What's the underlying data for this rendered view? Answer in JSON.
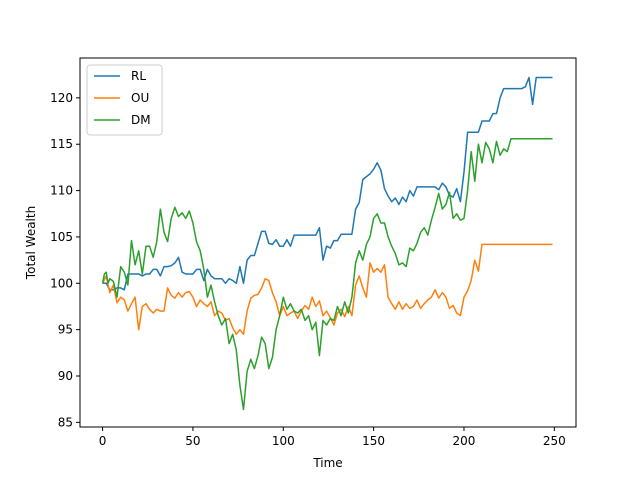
{
  "chart_data": {
    "type": "line",
    "title": "",
    "xlabel": "Time",
    "ylabel": "Total Wealth",
    "xlim": [
      -12.5,
      262
    ],
    "ylim": [
      84.5,
      124.3
    ],
    "xticks": [
      0,
      50,
      100,
      150,
      200,
      250
    ],
    "yticks": [
      85,
      90,
      95,
      100,
      105,
      110,
      115,
      120
    ],
    "grid": false,
    "legend_position": "top-left",
    "series": [
      {
        "name": "RL",
        "color": "#1f77b4",
        "points": [
          [
            0,
            100
          ],
          [
            2,
            100
          ],
          [
            4,
            99.3
          ],
          [
            6,
            99.3
          ],
          [
            8,
            99.5
          ],
          [
            10,
            99.5
          ],
          [
            12,
            99.3
          ],
          [
            14,
            101
          ],
          [
            20,
            101
          ],
          [
            22,
            100.8
          ],
          [
            24,
            101
          ],
          [
            26,
            101
          ],
          [
            28,
            101.5
          ],
          [
            30,
            101.5
          ],
          [
            32,
            100.8
          ],
          [
            34,
            101.8
          ],
          [
            36,
            101.8
          ],
          [
            38,
            101.9
          ],
          [
            40,
            102.2
          ],
          [
            42,
            102.8
          ],
          [
            44,
            101.2
          ],
          [
            46,
            101
          ],
          [
            50,
            101
          ],
          [
            52,
            101.5
          ],
          [
            54,
            101.5
          ],
          [
            56,
            100.3
          ],
          [
            58,
            101.5
          ],
          [
            60,
            100.8
          ],
          [
            62,
            100.5
          ],
          [
            66,
            100.5
          ],
          [
            68,
            100
          ],
          [
            70,
            100.5
          ],
          [
            72,
            100.3
          ],
          [
            74,
            100
          ],
          [
            76,
            101.8
          ],
          [
            78,
            100
          ],
          [
            80,
            102.5
          ],
          [
            82,
            103
          ],
          [
            84,
            103
          ],
          [
            86,
            104.3
          ],
          [
            88,
            105.6
          ],
          [
            90,
            105.6
          ],
          [
            92,
            104.3
          ],
          [
            94,
            104.2
          ],
          [
            96,
            104.7
          ],
          [
            98,
            104
          ],
          [
            100,
            104
          ],
          [
            102,
            104.7
          ],
          [
            104,
            104
          ],
          [
            106,
            105.2
          ],
          [
            118,
            105.2
          ],
          [
            120,
            106
          ],
          [
            122,
            102.5
          ],
          [
            124,
            104
          ],
          [
            126,
            103.8
          ],
          [
            128,
            104.6
          ],
          [
            130,
            104.6
          ],
          [
            132,
            105.3
          ],
          [
            138,
            105.3
          ],
          [
            140,
            108
          ],
          [
            142,
            108.7
          ],
          [
            144,
            111.2
          ],
          [
            146,
            111.5
          ],
          [
            148,
            111.8
          ],
          [
            150,
            112.3
          ],
          [
            152,
            113
          ],
          [
            154,
            112.2
          ],
          [
            156,
            110.2
          ],
          [
            158,
            109.4
          ],
          [
            160,
            108.8
          ],
          [
            162,
            109.2
          ],
          [
            164,
            108.5
          ],
          [
            166,
            109.3
          ],
          [
            168,
            108.8
          ],
          [
            170,
            110
          ],
          [
            172,
            109.4
          ],
          [
            174,
            110.4
          ],
          [
            184,
            110.4
          ],
          [
            186,
            110.1
          ],
          [
            188,
            110.8
          ],
          [
            190,
            110.4
          ],
          [
            192,
            109.5
          ],
          [
            194,
            109.3
          ],
          [
            196,
            110.2
          ],
          [
            198,
            108.8
          ],
          [
            200,
            112
          ],
          [
            202,
            116.3
          ],
          [
            208,
            116.3
          ],
          [
            210,
            117.5
          ],
          [
            214,
            117.5
          ],
          [
            216,
            118.3
          ],
          [
            218,
            118.3
          ],
          [
            220,
            120
          ],
          [
            222,
            121
          ],
          [
            232,
            121
          ],
          [
            234,
            121.2
          ],
          [
            236,
            122.2
          ],
          [
            238,
            119.3
          ],
          [
            240,
            122.2
          ],
          [
            249,
            122.2
          ]
        ]
      },
      {
        "name": "OU",
        "color": "#ff7f0e",
        "points": [
          [
            0,
            100
          ],
          [
            2,
            100.8
          ],
          [
            4,
            99
          ],
          [
            6,
            99.8
          ],
          [
            8,
            97.9
          ],
          [
            10,
            98.5
          ],
          [
            12,
            98.2
          ],
          [
            14,
            97
          ],
          [
            16,
            97.8
          ],
          [
            18,
            98.5
          ],
          [
            20,
            95
          ],
          [
            22,
            97.5
          ],
          [
            24,
            97.8
          ],
          [
            26,
            97.2
          ],
          [
            28,
            96.8
          ],
          [
            30,
            97.2
          ],
          [
            32,
            97
          ],
          [
            34,
            97
          ],
          [
            36,
            99.5
          ],
          [
            38,
            98.7
          ],
          [
            40,
            98.4
          ],
          [
            42,
            99
          ],
          [
            44,
            98.5
          ],
          [
            46,
            99
          ],
          [
            48,
            99.1
          ],
          [
            50,
            98.5
          ],
          [
            52,
            97.5
          ],
          [
            54,
            98.2
          ],
          [
            56,
            97.8
          ],
          [
            58,
            97.5
          ],
          [
            60,
            98
          ],
          [
            62,
            96.5
          ],
          [
            64,
            97
          ],
          [
            66,
            96.8
          ],
          [
            68,
            96
          ],
          [
            70,
            96.2
          ],
          [
            72,
            95.2
          ],
          [
            74,
            94.5
          ],
          [
            76,
            95
          ],
          [
            78,
            94.5
          ],
          [
            80,
            97
          ],
          [
            82,
            98.4
          ],
          [
            84,
            98.7
          ],
          [
            86,
            98.8
          ],
          [
            88,
            99.5
          ],
          [
            90,
            100.5
          ],
          [
            92,
            100.3
          ],
          [
            94,
            99
          ],
          [
            96,
            98
          ],
          [
            98,
            96.5
          ],
          [
            100,
            97.5
          ],
          [
            102,
            96.5
          ],
          [
            104,
            96.8
          ],
          [
            106,
            97
          ],
          [
            108,
            96.2
          ],
          [
            110,
            97
          ],
          [
            112,
            97.6
          ],
          [
            114,
            97.2
          ],
          [
            116,
            98.5
          ],
          [
            118,
            97.5
          ],
          [
            120,
            98.1
          ],
          [
            122,
            96.5
          ],
          [
            124,
            97
          ],
          [
            126,
            96.3
          ],
          [
            128,
            95.5
          ],
          [
            130,
            96.8
          ],
          [
            132,
            97.2
          ],
          [
            134,
            96.4
          ],
          [
            136,
            97.5
          ],
          [
            138,
            96.5
          ],
          [
            140,
            99.8
          ],
          [
            142,
            100.8
          ],
          [
            144,
            99.5
          ],
          [
            146,
            98.5
          ],
          [
            148,
            102.2
          ],
          [
            150,
            101.2
          ],
          [
            152,
            101.6
          ],
          [
            154,
            101.2
          ],
          [
            156,
            102
          ],
          [
            158,
            98.5
          ],
          [
            160,
            97.8
          ],
          [
            162,
            97.2
          ],
          [
            164,
            98
          ],
          [
            166,
            97.2
          ],
          [
            168,
            97.8
          ],
          [
            170,
            97.3
          ],
          [
            172,
            97.5
          ],
          [
            174,
            98.2
          ],
          [
            176,
            97.3
          ],
          [
            178,
            97.8
          ],
          [
            180,
            98.2
          ],
          [
            182,
            98.5
          ],
          [
            184,
            99.3
          ],
          [
            186,
            98.4
          ],
          [
            188,
            99
          ],
          [
            190,
            98.5
          ],
          [
            192,
            97.3
          ],
          [
            194,
            97.6
          ],
          [
            196,
            96.8
          ],
          [
            198,
            96.5
          ],
          [
            200,
            98.5
          ],
          [
            202,
            99.2
          ],
          [
            204,
            100.3
          ],
          [
            206,
            102.5
          ],
          [
            208,
            101.3
          ],
          [
            210,
            104.2
          ],
          [
            249,
            104.2
          ]
        ]
      },
      {
        "name": "DM",
        "color": "#2ca02c",
        "points": [
          [
            0,
            100
          ],
          [
            1,
            101
          ],
          [
            2,
            101.2
          ],
          [
            3,
            100
          ],
          [
            4,
            100.5
          ],
          [
            6,
            100.2
          ],
          [
            8,
            98.5
          ],
          [
            10,
            101.8
          ],
          [
            12,
            101.2
          ],
          [
            14,
            99.8
          ],
          [
            16,
            104.6
          ],
          [
            18,
            102
          ],
          [
            20,
            103.5
          ],
          [
            22,
            101
          ],
          [
            24,
            104
          ],
          [
            26,
            104
          ],
          [
            28,
            102.8
          ],
          [
            30,
            104.5
          ],
          [
            32,
            108
          ],
          [
            34,
            105.5
          ],
          [
            36,
            104.5
          ],
          [
            38,
            107
          ],
          [
            40,
            108.2
          ],
          [
            42,
            107.2
          ],
          [
            44,
            107.6
          ],
          [
            46,
            107
          ],
          [
            48,
            107.8
          ],
          [
            50,
            106.5
          ],
          [
            52,
            104.5
          ],
          [
            54,
            103.5
          ],
          [
            56,
            101.5
          ],
          [
            58,
            98.5
          ],
          [
            60,
            99.8
          ],
          [
            62,
            98
          ],
          [
            64,
            96.5
          ],
          [
            66,
            95.5
          ],
          [
            68,
            96.2
          ],
          [
            70,
            93.5
          ],
          [
            72,
            94.5
          ],
          [
            74,
            92.8
          ],
          [
            76,
            89
          ],
          [
            78,
            86.4
          ],
          [
            80,
            90.5
          ],
          [
            82,
            91.8
          ],
          [
            84,
            90.8
          ],
          [
            86,
            92.2
          ],
          [
            88,
            94.2
          ],
          [
            90,
            93.5
          ],
          [
            92,
            90.8
          ],
          [
            94,
            92
          ],
          [
            96,
            95
          ],
          [
            98,
            96.5
          ],
          [
            100,
            98.5
          ],
          [
            102,
            97.2
          ],
          [
            104,
            97.8
          ],
          [
            106,
            97
          ],
          [
            108,
            96.8
          ],
          [
            110,
            97.2
          ],
          [
            112,
            96
          ],
          [
            114,
            96.5
          ],
          [
            116,
            95
          ],
          [
            118,
            95.8
          ],
          [
            120,
            92.2
          ],
          [
            122,
            96
          ],
          [
            124,
            95.5
          ],
          [
            126,
            96.2
          ],
          [
            128,
            96
          ],
          [
            130,
            97.5
          ],
          [
            132,
            96.5
          ],
          [
            134,
            98
          ],
          [
            136,
            96.8
          ],
          [
            138,
            98.5
          ],
          [
            140,
            102.2
          ],
          [
            142,
            103.5
          ],
          [
            144,
            102.5
          ],
          [
            146,
            104.2
          ],
          [
            148,
            105
          ],
          [
            150,
            107
          ],
          [
            152,
            107.5
          ],
          [
            154,
            106.5
          ],
          [
            156,
            106.5
          ],
          [
            158,
            105
          ],
          [
            160,
            104
          ],
          [
            162,
            103.2
          ],
          [
            164,
            102
          ],
          [
            166,
            102.2
          ],
          [
            168,
            101.8
          ],
          [
            170,
            103.8
          ],
          [
            172,
            103.5
          ],
          [
            174,
            104.3
          ],
          [
            176,
            105.5
          ],
          [
            178,
            106
          ],
          [
            180,
            105.2
          ],
          [
            182,
            106.8
          ],
          [
            184,
            108.2
          ],
          [
            186,
            109.7
          ],
          [
            188,
            108
          ],
          [
            190,
            108.5
          ],
          [
            192,
            109.8
          ],
          [
            194,
            107
          ],
          [
            196,
            107.5
          ],
          [
            198,
            106.8
          ],
          [
            200,
            107
          ],
          [
            202,
            110
          ],
          [
            204,
            114.2
          ],
          [
            206,
            111
          ],
          [
            208,
            115
          ],
          [
            210,
            113
          ],
          [
            212,
            115.2
          ],
          [
            214,
            114.5
          ],
          [
            216,
            113
          ],
          [
            218,
            115.3
          ],
          [
            220,
            113.8
          ],
          [
            222,
            114.5
          ],
          [
            224,
            114.2
          ],
          [
            226,
            115.6
          ],
          [
            249,
            115.6
          ]
        ]
      }
    ]
  }
}
